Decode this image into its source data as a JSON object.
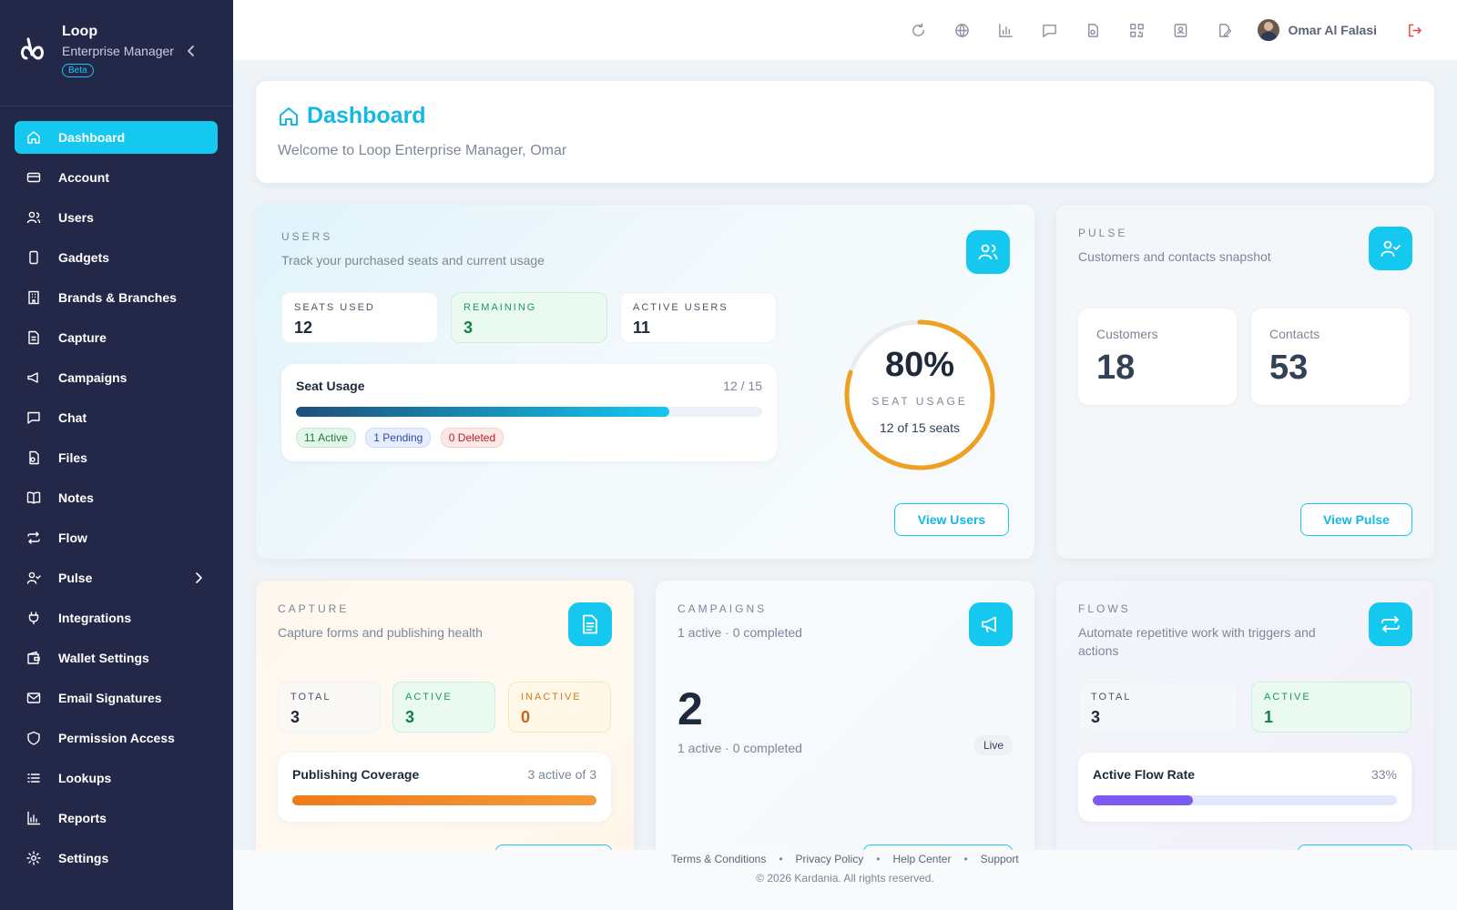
{
  "brand": {
    "name": "Loop",
    "product": "Enterprise Manager",
    "badge": "Beta"
  },
  "sidebar": {
    "items": [
      {
        "label": "Dashboard",
        "icon": "home-icon",
        "active": true
      },
      {
        "label": "Account",
        "icon": "card-icon"
      },
      {
        "label": "Users",
        "icon": "users-icon"
      },
      {
        "label": "Gadgets",
        "icon": "device-icon"
      },
      {
        "label": "Brands & Branches",
        "icon": "building-icon"
      },
      {
        "label": "Capture",
        "icon": "document-icon"
      },
      {
        "label": "Campaigns",
        "icon": "megaphone-icon"
      },
      {
        "label": "Chat",
        "icon": "chat-icon"
      },
      {
        "label": "Files",
        "icon": "files-icon"
      },
      {
        "label": "Notes",
        "icon": "book-icon"
      },
      {
        "label": "Flow",
        "icon": "flow-icon"
      },
      {
        "label": "Pulse",
        "icon": "user-check-icon",
        "expandable": true
      },
      {
        "label": "Integrations",
        "icon": "plug-icon"
      },
      {
        "label": "Wallet Settings",
        "icon": "wallet-icon"
      },
      {
        "label": "Email Signatures",
        "icon": "mail-icon"
      },
      {
        "label": "Permission Access",
        "icon": "shield-icon"
      },
      {
        "label": "Lookups",
        "icon": "list-icon"
      },
      {
        "label": "Reports",
        "icon": "chart-icon"
      },
      {
        "label": "Settings",
        "icon": "gear-icon"
      }
    ]
  },
  "topbar": {
    "icons": [
      "refresh-icon",
      "globe-icon",
      "bar-chart-icon",
      "chat-icon",
      "file-settings-icon",
      "qr-code-icon",
      "contact-icon",
      "edit-icon"
    ],
    "user_name": "Omar Al Falasi"
  },
  "header": {
    "title": "Dashboard",
    "subtitle": "Welcome to Loop Enterprise Manager, Omar"
  },
  "users_card": {
    "kicker": "USERS",
    "subtitle": "Track your purchased seats and current usage",
    "stats": [
      {
        "label": "SEATS USED",
        "value": "12"
      },
      {
        "label": "REMAINING",
        "value": "3"
      },
      {
        "label": "ACTIVE USERS",
        "value": "11"
      }
    ],
    "seat_usage": {
      "title": "Seat Usage",
      "value_text": "12 / 15",
      "fraction": 0.8
    },
    "chips": [
      "11 Active",
      "1 Pending",
      "0 Deleted"
    ],
    "ring": {
      "percent_text": "80%",
      "label": "SEAT USAGE",
      "detail": "12 of 15 seats",
      "fraction": 0.8
    },
    "button": "View Users"
  },
  "pulse_card": {
    "kicker": "PULSE",
    "subtitle": "Customers and contacts snapshot",
    "boxes": [
      {
        "label": "Customers",
        "value": "18"
      },
      {
        "label": "Contacts",
        "value": "53"
      }
    ],
    "button": "View Pulse"
  },
  "capture_card": {
    "kicker": "CAPTURE",
    "subtitle": "Capture forms and publishing health",
    "stats": [
      {
        "label": "TOTAL",
        "value": "3"
      },
      {
        "label": "ACTIVE",
        "value": "3"
      },
      {
        "label": "INACTIVE",
        "value": "0"
      }
    ],
    "coverage": {
      "title": "Publishing Coverage",
      "value_text": "3 active of 3",
      "fraction": 1.0
    }
  },
  "campaigns_card": {
    "kicker": "CAMPAIGNS",
    "subtitle": "1 active · 0 completed",
    "big_value": "2",
    "detail": "1 active · 0 completed",
    "badge": "Live"
  },
  "flows_card": {
    "kicker": "FLOWS",
    "subtitle": "Automate repetitive work with triggers and actions",
    "stats": [
      {
        "label": "TOTAL",
        "value": "3"
      },
      {
        "label": "ACTIVE",
        "value": "1"
      }
    ],
    "rate": {
      "title": "Active Flow Rate",
      "value_text": "33%",
      "fraction": 0.33
    }
  },
  "footer": {
    "links": [
      "Terms & Conditions",
      "Privacy Policy",
      "Help Center",
      "Support"
    ],
    "copyright": "© 2026 Kardania. All rights reserved."
  },
  "colors": {
    "accent": "#14c8f0",
    "sidebar": "#232848",
    "ring": "#f0a020",
    "orange_bar": "#f07a1a",
    "purple_bar": "#7c5cf0"
  }
}
